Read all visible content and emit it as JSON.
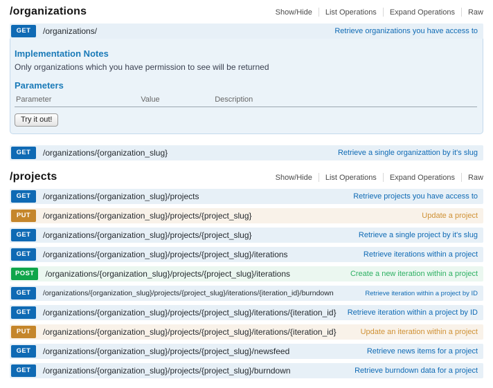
{
  "colors": {
    "get_badge": "#0f6ab4",
    "get_row_bg": "#e7f0f7",
    "get_panel_bg": "#ebf3f9",
    "get_border": "#c3d9ec",
    "put_badge": "#c5862b",
    "put_row_bg": "#f9f2e9",
    "put_link": "#cf9135",
    "post_badge": "#10a54a",
    "post_row_bg": "#ebf7f0",
    "post_link": "#2eb063",
    "heading_blue": "#1a7ab8",
    "control_link": "#4a4a4a"
  },
  "sections": [
    {
      "title": "/organizations",
      "controls": [
        "Show/Hide",
        "List Operations",
        "Expand Operations",
        "Raw"
      ],
      "operations": [
        {
          "method": "GET",
          "path": "/organizations/",
          "summary": "Retrieve organizations you have access to",
          "details": {
            "notes_title": "Implementation Notes",
            "notes": "Only organizations which you have permission to see will be returned",
            "params_title": "Parameters",
            "columns": [
              "Parameter",
              "Value",
              "Description"
            ],
            "try_label": "Try it out!"
          }
        },
        {
          "method": "GET",
          "path": "/organizations/{organization_slug}",
          "summary": "Retrieve a single organizattion by it's slug"
        }
      ]
    },
    {
      "title": "/projects",
      "controls": [
        "Show/Hide",
        "List Operations",
        "Expand Operations",
        "Raw"
      ],
      "operations": [
        {
          "method": "GET",
          "path": "/organizations/{organization_slug}/projects",
          "summary": "Retrieve projects you have access to"
        },
        {
          "method": "PUT",
          "path": "/organizations/{organization_slug}/projects/{project_slug}",
          "summary": "Update a project"
        },
        {
          "method": "GET",
          "path": "/organizations/{organization_slug}/projects/{project_slug}",
          "summary": "Retrieve a single project by it's slug"
        },
        {
          "method": "GET",
          "path": "/organizations/{organization_slug}/projects/{project_slug}/iterations",
          "summary": "Retrieve iterations within a project"
        },
        {
          "method": "POST",
          "path": "/organizations/{organization_slug}/projects/{project_slug}/iterations",
          "summary": "Create a new iteration within a project"
        },
        {
          "method": "GET",
          "path": "/organizations/{organization_slug}/projects/{project_slug}/iterations/{iteration_id}/burndown",
          "summary": "Retrieve iteration within a project by ID"
        },
        {
          "method": "GET",
          "path": "/organizations/{organization_slug}/projects/{project_slug}/iterations/{iteration_id}",
          "summary": "Retrieve iteration within a project by ID"
        },
        {
          "method": "PUT",
          "path": "/organizations/{organization_slug}/projects/{project_slug}/iterations/{iteration_id}",
          "summary": "Update an iteration within a project"
        },
        {
          "method": "GET",
          "path": "/organizations/{organization_slug}/projects/{project_slug}/newsfeed",
          "summary": "Retrieve news items for a project"
        },
        {
          "method": "GET",
          "path": "/organizations/{organization_slug}/projects/{project_slug}/burndown",
          "summary": "Retrieve burndown data for a project"
        }
      ]
    }
  ]
}
